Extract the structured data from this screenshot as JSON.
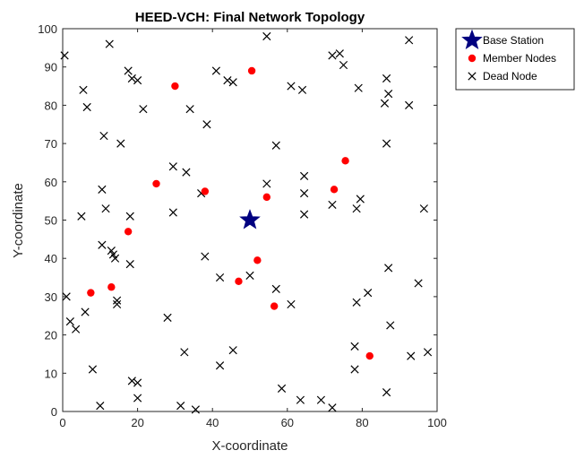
{
  "chart_data": {
    "type": "scatter",
    "title": "HEED-VCH: Final Network Topology",
    "xlabel": "X-coordinate",
    "ylabel": "Y-coordinate",
    "xlim": [
      0,
      100
    ],
    "ylim": [
      0,
      100
    ],
    "xticks": [
      0,
      20,
      40,
      60,
      80,
      100
    ],
    "yticks": [
      0,
      10,
      20,
      30,
      40,
      50,
      60,
      70,
      80,
      90,
      100
    ],
    "grid": false,
    "legend_position": "outside-top-right",
    "series": [
      {
        "name": "Base Station",
        "marker": "star",
        "color": "#000080",
        "points": [
          [
            50,
            50
          ]
        ]
      },
      {
        "name": "Member Nodes",
        "marker": "circle",
        "color": "#ff0000",
        "points": [
          [
            30,
            85
          ],
          [
            50.5,
            89
          ],
          [
            25,
            59.5
          ],
          [
            38,
            57.5
          ],
          [
            17.5,
            47
          ],
          [
            7.5,
            31
          ],
          [
            13,
            32.5
          ],
          [
            47,
            34
          ],
          [
            52,
            39.5
          ],
          [
            54.5,
            56
          ],
          [
            56.5,
            27.5
          ],
          [
            72.5,
            58
          ],
          [
            75.5,
            65.5
          ],
          [
            82,
            14.5
          ]
        ]
      },
      {
        "name": "Dead Node",
        "marker": "x",
        "color": "#000000",
        "points": [
          [
            0.5,
            93
          ],
          [
            12.5,
            96
          ],
          [
            54.5,
            98
          ],
          [
            5.5,
            84
          ],
          [
            6.5,
            79.5
          ],
          [
            17.5,
            89
          ],
          [
            18.5,
            87
          ],
          [
            20,
            86.5
          ],
          [
            21.5,
            79
          ],
          [
            11,
            72
          ],
          [
            15.5,
            70
          ],
          [
            10.5,
            58
          ],
          [
            11.5,
            53
          ],
          [
            18,
            51
          ],
          [
            5,
            51
          ],
          [
            10.5,
            43.5
          ],
          [
            13,
            42
          ],
          [
            13.5,
            41
          ],
          [
            14,
            40
          ],
          [
            18,
            38.5
          ],
          [
            14.5,
            29
          ],
          [
            14.5,
            28
          ],
          [
            6,
            26
          ],
          [
            1,
            30
          ],
          [
            2,
            23.5
          ],
          [
            3.5,
            21.5
          ],
          [
            8,
            11
          ],
          [
            10,
            1.5
          ],
          [
            18.5,
            8
          ],
          [
            20,
            7.5
          ],
          [
            20,
            3.5
          ],
          [
            28,
            24.5
          ],
          [
            32.5,
            15.5
          ],
          [
            31.5,
            1.5
          ],
          [
            35.5,
            0.5
          ],
          [
            29.5,
            64
          ],
          [
            33,
            62.5
          ],
          [
            29.5,
            52
          ],
          [
            37,
            57
          ],
          [
            34,
            79
          ],
          [
            38.5,
            75
          ],
          [
            41,
            89
          ],
          [
            44,
            86.5
          ],
          [
            45.5,
            86
          ],
          [
            38,
            40.5
          ],
          [
            42,
            35
          ],
          [
            50,
            35.5
          ],
          [
            42,
            12
          ],
          [
            45.5,
            16
          ],
          [
            54.5,
            59.5
          ],
          [
            57,
            69.5
          ],
          [
            57,
            32
          ],
          [
            58.5,
            6
          ],
          [
            61,
            85
          ],
          [
            64,
            84
          ],
          [
            64.5,
            61.5
          ],
          [
            64.5,
            57
          ],
          [
            64.5,
            51.5
          ],
          [
            61,
            28
          ],
          [
            63.5,
            3
          ],
          [
            69,
            3
          ],
          [
            72,
            1
          ],
          [
            72,
            93
          ],
          [
            74,
            93.5
          ],
          [
            75,
            90.5
          ],
          [
            79,
            84.5
          ],
          [
            72,
            54
          ],
          [
            78.5,
            53
          ],
          [
            79.5,
            55.5
          ],
          [
            78.5,
            28.5
          ],
          [
            81.5,
            31
          ],
          [
            78,
            17
          ],
          [
            78,
            11
          ],
          [
            86,
            80.5
          ],
          [
            86.5,
            87
          ],
          [
            87,
            83
          ],
          [
            86.5,
            70
          ],
          [
            87,
            37.5
          ],
          [
            87.5,
            22.5
          ],
          [
            86.5,
            5
          ],
          [
            92.5,
            97
          ],
          [
            92.5,
            80
          ],
          [
            93,
            14.5
          ],
          [
            95,
            33.5
          ],
          [
            96.5,
            53
          ],
          [
            97.5,
            15.5
          ]
        ]
      }
    ]
  }
}
